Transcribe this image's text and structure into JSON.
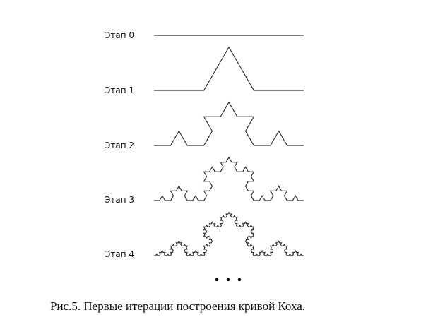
{
  "stages": [
    {
      "label": "Этап 0",
      "iteration": 0
    },
    {
      "label": "Этап 1",
      "iteration": 1
    },
    {
      "label": "Этап 2",
      "iteration": 2
    },
    {
      "label": "Этап 3",
      "iteration": 3
    },
    {
      "label": "Этап 4",
      "iteration": 4
    }
  ],
  "continuation": "•••",
  "caption": "Рис.5. Первые итерации построения кривой Коха."
}
